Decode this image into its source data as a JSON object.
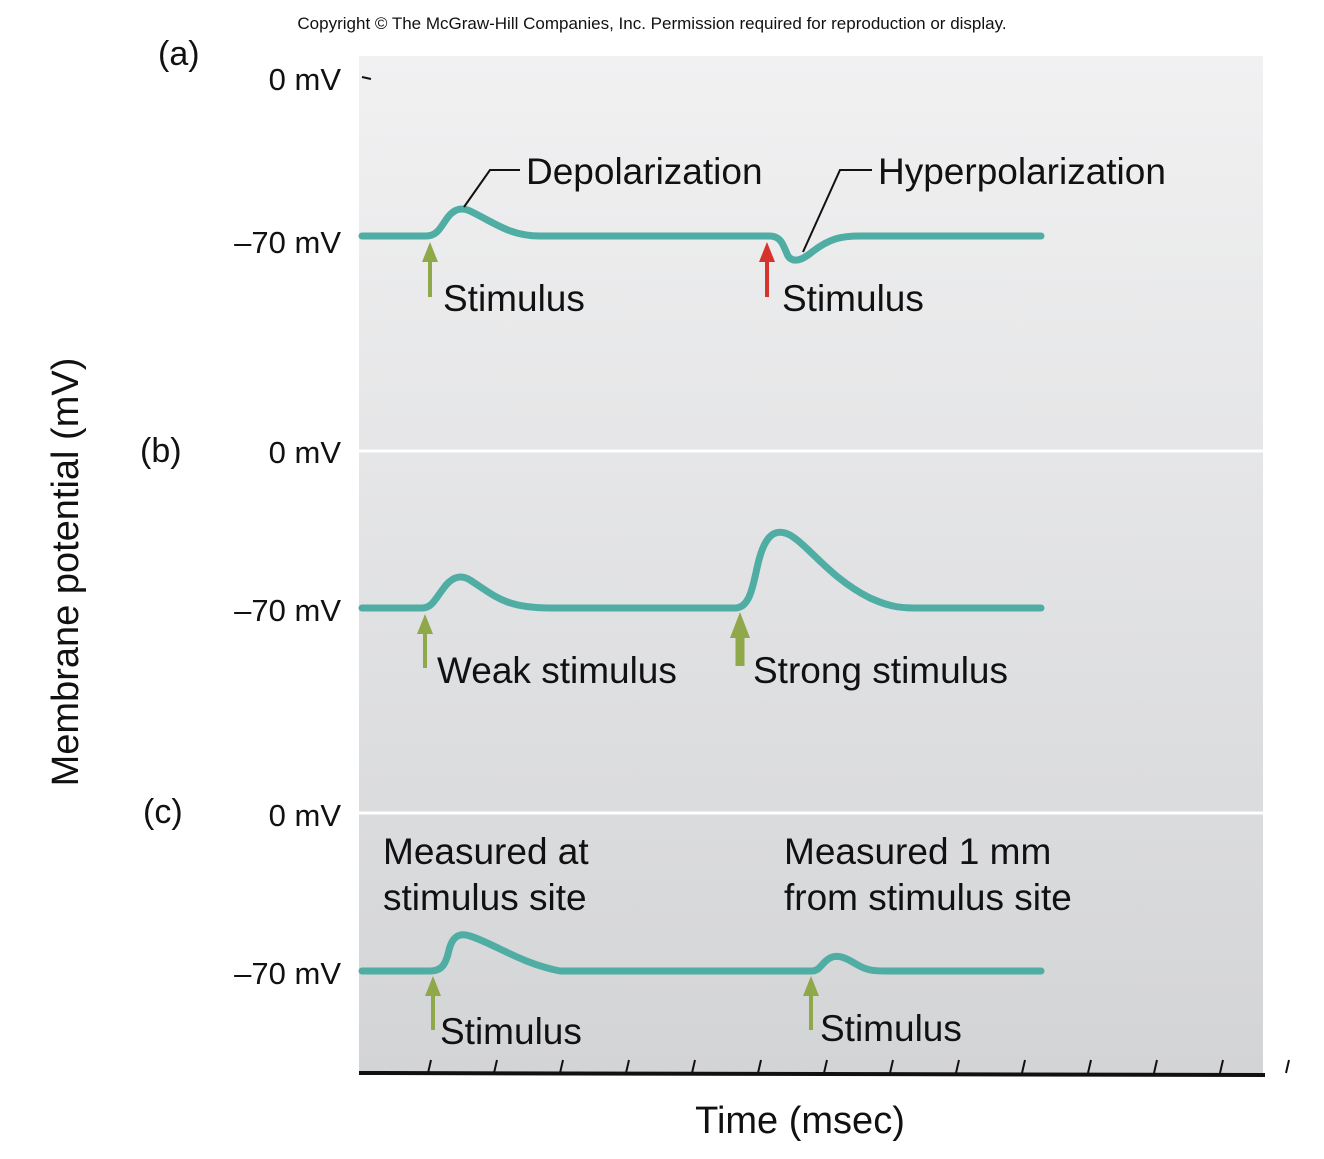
{
  "copyright": "Copyright © The McGraw-Hill Companies, Inc. Permission required for reproduction or display.",
  "colors": {
    "trace": "#4fada4",
    "arrow_stimulus": "#8fa84a",
    "arrow_hyperpolarizing": "#d6332c",
    "panel_top": "#f1f1f2",
    "panel_bottom": "#d3d4d6",
    "axis": "#111111"
  },
  "y_axis": {
    "label": "Membrane potential (mV)"
  },
  "x_axis": {
    "label": "Time (msec)"
  },
  "panels": [
    {
      "letter": "(a)",
      "zero_label": "0 mV",
      "rest_label": "–70 mV",
      "annotations": [
        {
          "text": "Depolarization"
        },
        {
          "text": "Hyperpolarization"
        }
      ],
      "stimuli": [
        {
          "label": "Stimulus",
          "kind": "weak-excitatory"
        },
        {
          "label": "Stimulus",
          "kind": "inhibitory"
        }
      ]
    },
    {
      "letter": "(b)",
      "zero_label": "0 mV",
      "rest_label": "–70 mV",
      "stimuli": [
        {
          "label": "Weak stimulus",
          "kind": "weak-excitatory"
        },
        {
          "label": "Strong stimulus",
          "kind": "strong-excitatory"
        }
      ]
    },
    {
      "letter": "(c)",
      "zero_label": "0 mV",
      "rest_label": "–70 mV",
      "annotations": [
        {
          "line1": "Measured at",
          "line2": "stimulus site"
        },
        {
          "line1": "Measured 1 mm",
          "line2": "from stimulus site"
        }
      ],
      "stimuli": [
        {
          "label": "Stimulus",
          "kind": "weak-excitatory"
        },
        {
          "label": "Stimulus",
          "kind": "weak-excitatory"
        }
      ]
    }
  ]
}
